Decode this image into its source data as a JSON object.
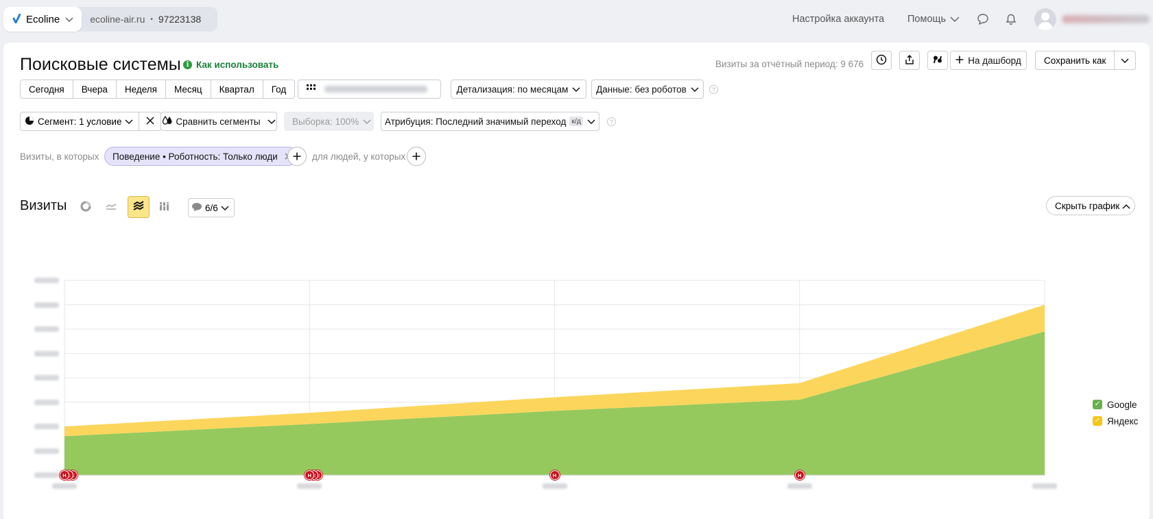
{
  "header": {
    "counter": {
      "name": "Ecoline",
      "site": "ecoline-air.ru",
      "separator": "•",
      "id": "97223138"
    },
    "settings_label": "Настройка аккаунта",
    "help_label": "Помощь"
  },
  "report": {
    "title": "Поисковые системы",
    "howto_label": "Как использовать",
    "visits_total_text": "Визиты за отчётный период: 9 676",
    "dashboard_label": "На дашборд",
    "save_label": "Сохранить как"
  },
  "period_buttons": [
    "Сегодня",
    "Вчера",
    "Неделя",
    "Месяц",
    "Квартал",
    "Год"
  ],
  "detail_label": "Детализация: по месяцам",
  "data_label": "Данные: без роботов",
  "segment_label": "Сегмент: 1 условие",
  "compare_label": "Сравнить сегменты",
  "sample_label": "Выборка: 100%",
  "attribution_label": "Атрибуция: Последний значимый переход",
  "attribution_badge": "к/д",
  "filters": {
    "visits_label": "Визиты, в которых",
    "chip_label": "Поведение • Роботность: Только люди",
    "people_label": "для людей, у которых"
  },
  "chart_header": {
    "title": "Визиты",
    "notes_count": "6/6",
    "hide_label": "Скрыть график"
  },
  "chart_data": {
    "type": "area",
    "stacked": true,
    "categories": [
      "",
      "",
      "",
      "",
      ""
    ],
    "series": [
      {
        "name": "Google",
        "color": "#95c95e",
        "values": [
          800,
          1050,
          1320,
          1550,
          2950
        ]
      },
      {
        "name": "Яндекс",
        "color": "#fcd65c",
        "values": [
          200,
          230,
          280,
          340,
          550
        ]
      }
    ],
    "ylim": [
      0,
      4000
    ],
    "grid": true,
    "legend_position": "right",
    "annotation_label": "Н",
    "annotations": [
      {
        "index": 0,
        "count": 3
      },
      {
        "index": 1,
        "count": 3
      },
      {
        "index": 2,
        "count": 1
      },
      {
        "index": 3,
        "count": 1
      }
    ]
  }
}
